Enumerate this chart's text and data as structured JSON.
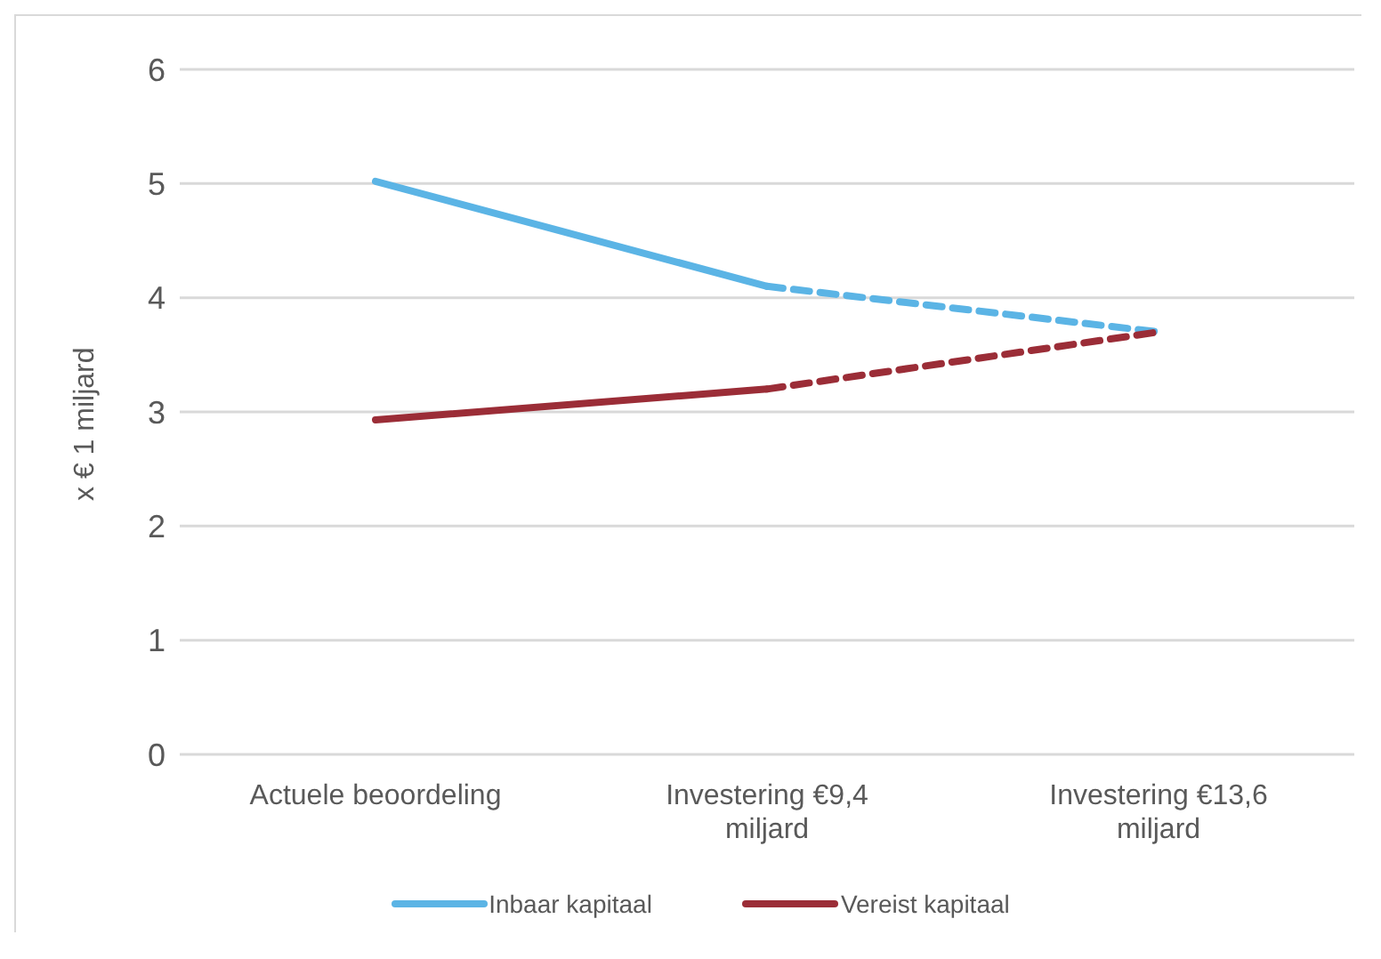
{
  "chart_data": {
    "type": "line",
    "ylabel": "x € 1 miljard",
    "categories": [
      "Actuele beoordeling",
      "Investering €9,4 miljard",
      "Investering €13,6 miljard"
    ],
    "series": [
      {
        "name": "Inbaar kapitaal",
        "color": "#5bb4e5",
        "values": [
          5.02,
          4.1,
          null
        ],
        "line_style": "solid"
      },
      {
        "color": "#5bb4e5",
        "values": [
          null,
          4.1,
          3.7
        ],
        "line_style": "dashed"
      },
      {
        "name": "Vereist kapitaal",
        "color": "#9b2d37",
        "values": [
          2.93,
          3.2,
          null
        ],
        "line_style": "solid"
      },
      {
        "color": "#9b2d37",
        "values": [
          null,
          3.2,
          3.7
        ],
        "line_style": "dashed"
      }
    ],
    "ylim": [
      0,
      6
    ],
    "yticks": [
      0,
      1,
      2,
      3,
      4,
      5,
      6
    ],
    "grid": "y",
    "legend": "bottom",
    "marker": "none"
  }
}
